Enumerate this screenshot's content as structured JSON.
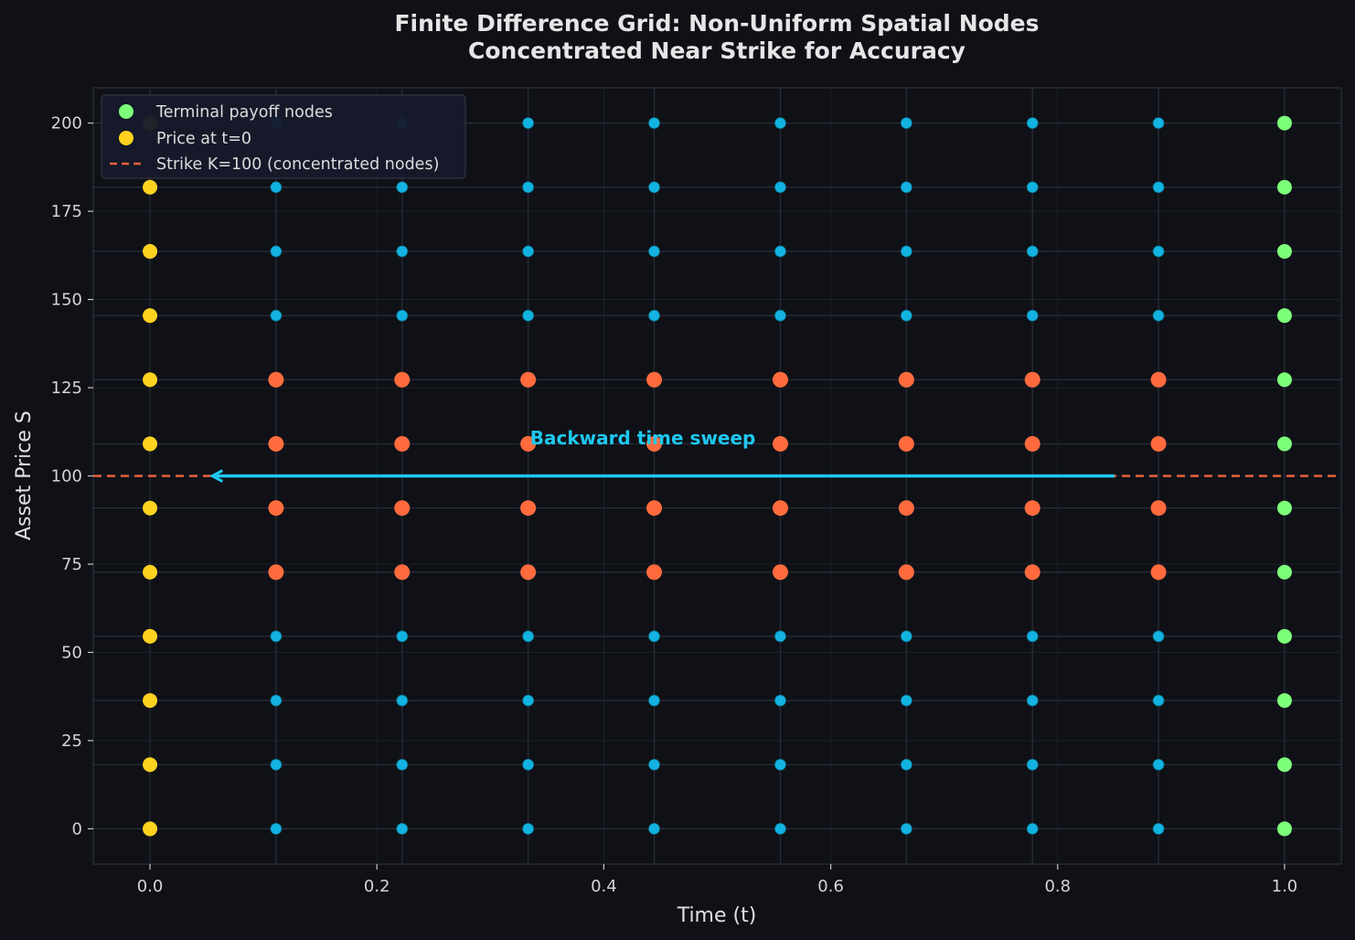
{
  "chart_data": {
    "type": "scatter",
    "title": "Finite Difference Grid: Non-Uniform Spatial Nodes",
    "subtitle": "Concentrated Near Strike for Accuracy",
    "xlabel": "Time (t)",
    "ylabel": "Asset Price S",
    "xlim": [
      -0.05,
      1.05
    ],
    "ylim": [
      -10,
      210
    ],
    "xticks": [
      "0.0",
      "0.2",
      "0.4",
      "0.6",
      "0.8",
      "1.0"
    ],
    "yticks": [
      "0",
      "25",
      "50",
      "75",
      "100",
      "125",
      "150",
      "175",
      "200"
    ],
    "grid": true,
    "legend_position": "top-left",
    "time_nodes": [
      0.0,
      0.1111,
      0.2222,
      0.3333,
      0.4444,
      0.5556,
      0.6667,
      0.7778,
      0.8889,
      1.0
    ],
    "price_nodes": [
      0,
      18.18,
      36.36,
      54.55,
      72.73,
      90.91,
      109.09,
      127.27,
      145.45,
      163.64,
      181.82,
      200
    ],
    "near_strike_price_nodes": [
      72.73,
      90.91,
      109.09,
      127.27
    ],
    "series": [
      {
        "name": "Terminal payoff nodes",
        "color": "#7dff7a",
        "t": 1.0
      },
      {
        "name": "Price at t=0",
        "color": "#ffd21f",
        "t": 0.0
      },
      {
        "name": "Strike K=100 (concentrated nodes)",
        "color": "#e8603a",
        "style": "dashed",
        "value": 100
      }
    ],
    "interior_node_color": "#12b3e0",
    "near_strike_node_color": "#ff6b3d",
    "annotation": {
      "text": "Backward time sweep",
      "arrow_from": [
        0.85,
        100
      ],
      "arrow_to": [
        0.055,
        100
      ],
      "text_position": [
        0.335,
        109
      ],
      "color": "#1ec8f0"
    }
  }
}
